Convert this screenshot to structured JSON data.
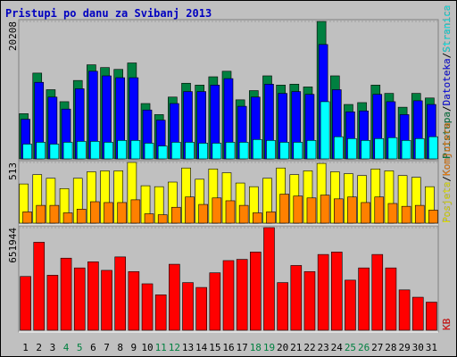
{
  "chart_data": {
    "type": "bar",
    "title": "Pristupi po danu za Svibanj 2013",
    "categories": [
      "1",
      "2",
      "3",
      "4",
      "5",
      "6",
      "7",
      "8",
      "9",
      "10",
      "11",
      "12",
      "13",
      "14",
      "15",
      "16",
      "17",
      "18",
      "19",
      "20",
      "21",
      "22",
      "23",
      "24",
      "25",
      "26",
      "27",
      "28",
      "29",
      "30",
      "31"
    ],
    "category_colors": [
      "#000000",
      "#000000",
      "#000000",
      "#008040",
      "#008040",
      "#000000",
      "#000000",
      "#000000",
      "#000000",
      "#000000",
      "#008040",
      "#008040",
      "#000000",
      "#000000",
      "#000000",
      "#000000",
      "#000000",
      "#008040",
      "#008040",
      "#000000",
      "#000000",
      "#000000",
      "#000000",
      "#000000",
      "#008040",
      "#008040",
      "#000000",
      "#000000",
      "#000000",
      "#000000",
      "#000000"
    ],
    "legend_separator": "/",
    "panels": [
      {
        "ylim": [
          0,
          20208
        ],
        "yticks": [
          20208
        ],
        "series": [
          {
            "name": "Pristupa",
            "color": "#008040",
            "values": [
              6645,
              12612,
              10171,
              8408,
              11527,
              13833,
              13426,
              13155,
              14104,
              8137,
              6510,
              9086,
              11121,
              10850,
              12070,
              12884,
              8680,
              10036,
              12206,
              10850,
              10985,
              10578,
              20208,
              12206,
              8001,
              8273,
              10850,
              9629,
              7595,
              9629,
              8951
            ]
          },
          {
            "name": "Datoteka",
            "color": "#0000ff",
            "values": [
              5831,
              11255,
              9085,
              7322,
              10306,
              12882,
              12204,
              11933,
              11933,
              7187,
              5695,
              8136,
              9899,
              9899,
              10848,
              11797,
              7729,
              9085,
              10984,
              9628,
              9899,
              9492,
              16814,
              10170,
              6916,
              7051,
              9492,
              8407,
              6509,
              8543,
              8000
            ]
          },
          {
            "name": "Stranica",
            "color": "#00ffff",
            "values": [
              2170,
              2441,
              2170,
              2441,
              2576,
              2576,
              2441,
              2712,
              2712,
              2305,
              1898,
              2441,
              2441,
              2305,
              2305,
              2441,
              2441,
              2848,
              2712,
              2441,
              2441,
              2712,
              8407,
              3254,
              2983,
              2712,
              2983,
              3119,
              2712,
              2983,
              3254
            ]
          }
        ]
      },
      {
        "ylim": [
          0,
          513
        ],
        "yticks": [
          513
        ],
        "series": [
          {
            "name": "Posjeta",
            "color": "#ffff00",
            "values": [
              331,
              410,
              379,
              292,
              379,
              434,
              442,
              442,
              513,
              316,
              308,
              347,
              466,
              371,
              458,
              426,
              339,
              308,
              379,
              466,
              410,
              442,
              505,
              434,
              418,
              402,
              458,
              442,
              402,
              387,
              308
            ]
          },
          {
            "name": "Komjutera",
            "color": "#ff8000",
            "values": [
              95,
              150,
              150,
              87,
              118,
              181,
              174,
              174,
              197,
              79,
              71,
              134,
              221,
              158,
              213,
              189,
              150,
              87,
              95,
              245,
              229,
              213,
              237,
              205,
              221,
              174,
              221,
              166,
              142,
              150,
              110
            ]
          }
        ]
      },
      {
        "ylim": [
          0,
          651944
        ],
        "yticks": [
          651944
        ],
        "series": [
          {
            "name": "KB",
            "color": "#ff0000",
            "values": [
              341484,
              558792,
              349245,
              457899,
              395811,
              434616,
              380289,
              465660,
              372528,
              294918,
              225069,
              419094,
              302679,
              271635,
              364767,
              442377,
              450138,
              496704,
              651944,
              302679,
              411333,
              372528,
              481182,
              496704,
              318201,
              395811,
              481182,
              395811,
              256113,
              209547,
              178503
            ]
          }
        ]
      }
    ]
  }
}
